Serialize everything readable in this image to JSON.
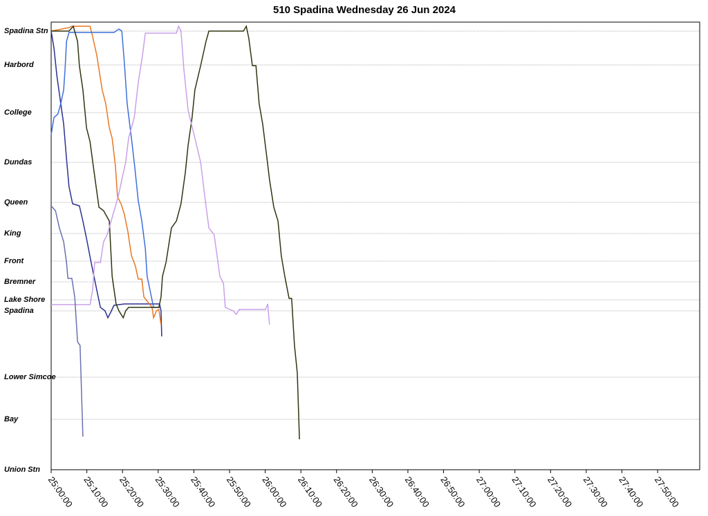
{
  "chart_data": {
    "type": "line",
    "title": "510 Spadina Wednesday 26 Jun 2024",
    "xlim": [
      1500,
      1681.8
    ],
    "xticks": [
      {
        "value": 1500,
        "label": "25:00:00"
      },
      {
        "value": 1510,
        "label": "25:10:00"
      },
      {
        "value": 1520,
        "label": "25:20:00"
      },
      {
        "value": 1530,
        "label": "25:30:00"
      },
      {
        "value": 1540,
        "label": "25:40:00"
      },
      {
        "value": 1550,
        "label": "25:50:00"
      },
      {
        "value": 1560,
        "label": "26:00:00"
      },
      {
        "value": 1570,
        "label": "26:10:00"
      },
      {
        "value": 1580,
        "label": "26:20:00"
      },
      {
        "value": 1590,
        "label": "26:30:00"
      },
      {
        "value": 1600,
        "label": "26:40:00"
      },
      {
        "value": 1610,
        "label": "26:50:00"
      },
      {
        "value": 1620,
        "label": "27:00:00"
      },
      {
        "value": 1630,
        "label": "27:10:00"
      },
      {
        "value": 1640,
        "label": "27:20:00"
      },
      {
        "value": 1650,
        "label": "27:30:00"
      },
      {
        "value": 1660,
        "label": "27:40:00"
      },
      {
        "value": 1670,
        "label": "27:50:00"
      }
    ],
    "ylim": [
      648,
      0
    ],
    "yticks": [
      {
        "value": 13,
        "label": "Spadina Stn"
      },
      {
        "value": 62,
        "label": "Harbord"
      },
      {
        "value": 131,
        "label": "College"
      },
      {
        "value": 203,
        "label": "Dundas"
      },
      {
        "value": 261,
        "label": "Queen"
      },
      {
        "value": 306,
        "label": "King"
      },
      {
        "value": 346,
        "label": "Front"
      },
      {
        "value": 376,
        "label": "Bremner"
      },
      {
        "value": 402,
        "label": "Lake Shore"
      },
      {
        "value": 418,
        "label": "Spadina"
      },
      {
        "value": 514,
        "label": "Lower Simcoe"
      },
      {
        "value": 575,
        "label": "Bay"
      },
      {
        "value": 648,
        "label": "Union Stn"
      }
    ],
    "grid": true,
    "series": [
      {
        "color": "#2b2f8f",
        "x": [
          1500,
          1500.8,
          1501.6,
          1502.7,
          1503.5,
          1504.3,
          1505.0,
          1506.0,
          1507.9,
          1508.9,
          1509.9,
          1511.2,
          1512.8,
          1513.8,
          1515.1,
          1515.9,
          1516.7,
          1517.6,
          1520.5,
          1530.4,
          1530.8,
          1531.0
        ],
        "values": [
          13,
          38,
          78,
          118,
          148,
          198,
          238,
          263,
          266,
          288,
          313,
          348,
          388,
          413,
          418,
          428,
          420,
          410,
          408,
          408,
          418,
          455
        ]
      },
      {
        "color": "#e87722",
        "x": [
          1500,
          1505.0,
          1505.8,
          1510.9,
          1511.4,
          1512.8,
          1514.3,
          1515.3,
          1516.3,
          1517.1,
          1518.0,
          1518.6,
          1519.6,
          1520.5,
          1521.5,
          1522.5,
          1523.6,
          1524.4,
          1525.4,
          1526.0,
          1528.3,
          1528.7,
          1529.5,
          1530.2,
          1530.8
        ],
        "values": [
          13,
          8,
          6,
          6,
          16,
          48,
          98,
          118,
          153,
          168,
          208,
          253,
          263,
          278,
          303,
          338,
          353,
          372,
          372,
          398,
          413,
          428,
          418,
          416,
          438
        ]
      },
      {
        "color": "#3c6fd8",
        "x": [
          1500,
          1500.8,
          1501.9,
          1502.7,
          1503.5,
          1503.9,
          1504.3,
          1505.0,
          1517.6,
          1519.0,
          1519.8,
          1520.5,
          1521.3,
          1522.5,
          1523.4,
          1524.4,
          1525.4,
          1526.4,
          1526.9,
          1527.9,
          1528.7,
          1530.6
        ],
        "values": [
          163,
          138,
          133,
          118,
          98,
          68,
          28,
          15,
          15,
          10,
          13,
          58,
          118,
          168,
          208,
          258,
          288,
          328,
          368,
          393,
          413,
          413
        ]
      },
      {
        "color": "#2d3510",
        "x": [
          1500,
          1505.0,
          1506.2,
          1507.4,
          1507.9,
          1508.9,
          1509.9,
          1510.9,
          1512.2,
          1513.4,
          1514.7,
          1516.3,
          1517.1,
          1518.2,
          1519.0,
          1520.2,
          1520.9,
          1521.7,
          1530.2,
          1530.8,
          1531.2,
          1532.2,
          1533.7,
          1535.1,
          1536.4,
          1537.6,
          1538.4,
          1539.5,
          1540.3,
          1541.9,
          1543.4,
          1544.2,
          1553.9,
          1554.7,
          1555.4,
          1556.4,
          1557.4,
          1558.3,
          1559.3,
          1560.5,
          1561.2,
          1562.4,
          1563.6,
          1564.5,
          1565.5,
          1566.7,
          1567.4,
          1568.2,
          1569.0,
          1569.6
        ],
        "values": [
          13,
          13,
          6,
          28,
          63,
          98,
          153,
          173,
          223,
          268,
          273,
          288,
          368,
          408,
          418,
          428,
          418,
          413,
          413,
          398,
          368,
          348,
          298,
          288,
          263,
          218,
          178,
          138,
          98,
          63,
          28,
          13,
          13,
          6,
          23,
          63,
          63,
          118,
          148,
          198,
          228,
          268,
          288,
          338,
          368,
          400,
          400,
          468,
          508,
          604
        ]
      },
      {
        "color": "#c8a0ea",
        "x": [
          1500,
          1510.9,
          1511.6,
          1512.2,
          1513.8,
          1514.7,
          1515.7,
          1517.1,
          1518.2,
          1519.0,
          1519.8,
          1520.9,
          1521.7,
          1523.3,
          1524.4,
          1525.6,
          1526.4,
          1535.1,
          1535.7,
          1536.4,
          1537.2,
          1538.4,
          1540.3,
          1541.9,
          1543.2,
          1544.2,
          1545.7,
          1547.3,
          1548.3,
          1548.8,
          1551.0,
          1551.9,
          1552.7,
          1560.1,
          1560.7,
          1561.2
        ],
        "values": [
          409,
          409,
          388,
          348,
          348,
          318,
          308,
          283,
          263,
          248,
          228,
          203,
          168,
          138,
          88,
          48,
          16,
          16,
          6,
          13,
          68,
          128,
          168,
          203,
          258,
          298,
          308,
          368,
          378,
          413,
          418,
          423,
          416,
          416,
          408,
          438
        ]
      },
      {
        "color": "#6b6fb0",
        "x": [
          1500,
          1501.2,
          1502.3,
          1503.5,
          1504.3,
          1504.7,
          1505.8,
          1506.6,
          1507.4,
          1508.1,
          1508.9
        ],
        "values": [
          266,
          273,
          298,
          318,
          348,
          371,
          371,
          398,
          463,
          468,
          600
        ]
      }
    ]
  }
}
